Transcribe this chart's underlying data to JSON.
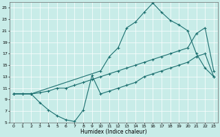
{
  "xlabel": "Humidex (Indice chaleur)",
  "bg_color": "#c8ece8",
  "line_color": "#1a6e6e",
  "xlim": [
    -0.5,
    23.5
  ],
  "ylim": [
    5,
    26
  ],
  "xticks": [
    0,
    1,
    2,
    3,
    4,
    5,
    6,
    7,
    8,
    9,
    10,
    11,
    12,
    13,
    14,
    15,
    16,
    17,
    18,
    19,
    20,
    21,
    22,
    23
  ],
  "yticks": [
    5,
    7,
    9,
    11,
    13,
    15,
    17,
    19,
    21,
    23,
    25
  ],
  "line1_x": [
    0,
    1,
    2,
    3,
    4,
    5,
    6,
    7,
    8,
    9,
    10,
    11,
    12,
    13,
    14,
    15,
    16,
    17,
    18,
    19,
    20,
    21,
    22,
    23
  ],
  "line1_y": [
    10,
    10,
    10,
    8.5,
    7.2,
    6.2,
    5.5,
    5.2,
    7.2,
    13.2,
    10,
    10.5,
    11,
    11.5,
    12,
    13,
    13.5,
    14,
    14.5,
    15,
    15.5,
    16.5,
    17,
    13
  ],
  "line2_x": [
    0,
    1,
    2,
    3,
    4,
    5,
    6,
    7,
    8,
    9,
    10,
    11,
    12,
    13,
    14,
    15,
    16,
    17,
    18,
    19,
    20,
    21,
    22,
    23
  ],
  "line2_y": [
    10,
    10,
    10,
    10.2,
    10.5,
    11,
    11,
    11.5,
    12,
    12.5,
    13,
    13.5,
    14,
    14.5,
    15,
    15.5,
    16,
    16.5,
    17,
    17.5,
    18,
    20.5,
    21.5,
    14
  ],
  "line3_x": [
    0,
    2,
    10,
    11,
    12,
    13,
    14,
    15,
    16,
    17,
    18,
    19,
    20,
    21,
    22,
    23
  ],
  "line3_y": [
    10,
    10,
    14,
    16.5,
    18,
    21.5,
    22.5,
    24.2,
    25.8,
    24.2,
    22.8,
    22,
    21,
    17,
    14.5,
    13
  ]
}
